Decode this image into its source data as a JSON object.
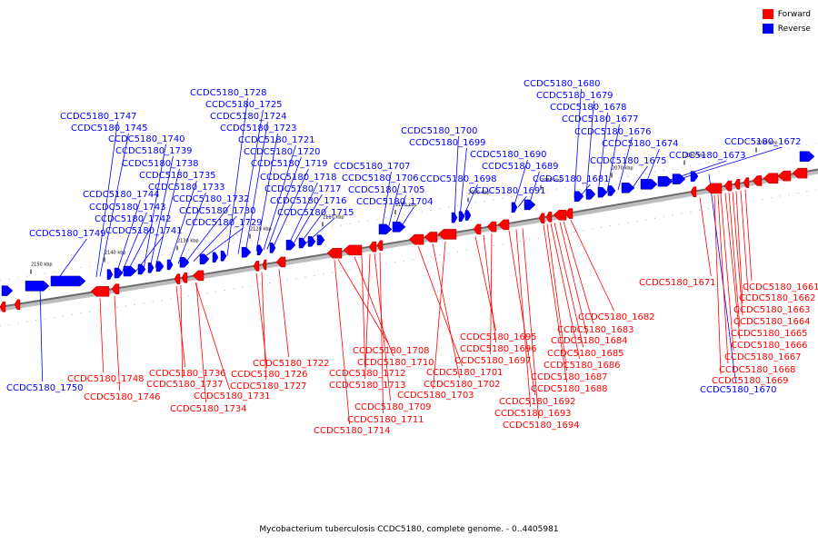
{
  "legend": {
    "forward_label": "Forward",
    "reverse_label": "Reverse",
    "forward_color": "#ff0000",
    "reverse_color": "#0000ff"
  },
  "caption": "Mycobacterium tuberculosis CCDC5180, complete genome. - 0..4405981",
  "scale": {
    "unit": "kbp",
    "ticks": [
      "2150 kbp",
      "2140 kbp",
      "2130 kbp",
      "2120 kbp",
      "2110 kbp",
      "2100 kbp",
      "2090 kbp",
      "2080 kbp",
      "2070 kbp",
      "2060 kbp",
      "2050 kbp"
    ]
  },
  "genes": {
    "reverse": [
      "CCDC5180_1750",
      "CCDC5180_1749",
      "CCDC5180_1747",
      "CCDC5180_1745",
      "CCDC5180_1744",
      "CCDC5180_1743",
      "CCDC5180_1742",
      "CCDC5180_1741",
      "CCDC5180_1740",
      "CCDC5180_1739",
      "CCDC5180_1738",
      "CCDC5180_1735",
      "CCDC5180_1733",
      "CCDC5180_1732",
      "CCDC5180_1730",
      "CCDC5180_1729",
      "CCDC5180_1728",
      "CCDC5180_1725",
      "CCDC5180_1724",
      "CCDC5180_1723",
      "CCDC5180_1721",
      "CCDC5180_1720",
      "CCDC5180_1719",
      "CCDC5180_1718",
      "CCDC5180_1717",
      "CCDC5180_1716",
      "CCDC5180_1715",
      "CCDC5180_1707",
      "CCDC5180_1706",
      "CCDC5180_1705",
      "CCDC5180_1704",
      "CCDC5180_1700",
      "CCDC5180_1699",
      "CCDC5180_1698",
      "CCDC5180_1691",
      "CCDC5180_1690",
      "CCDC5180_1689",
      "CCDC5180_1681",
      "CCDC5180_1680",
      "CCDC5180_1679",
      "CCDC5180_1678",
      "CCDC5180_1677",
      "CCDC5180_1676",
      "CCDC5180_1675",
      "CCDC5180_1674",
      "CCDC5180_1673",
      "CCDC5180_1672",
      "CCDC5180_1670"
    ],
    "forward": [
      "CCDC5180_1748",
      "CCDC5180_1746",
      "CCDC5180_1736",
      "CCDC5180_1737",
      "CCDC5180_1731",
      "CCDC5180_1734",
      "CCDC5180_1726",
      "CCDC5180_1727",
      "CCDC5180_1722",
      "CCDC5180_1708",
      "CCDC5180_1710",
      "CCDC5180_1712",
      "CCDC5180_1713",
      "CCDC5180_1709",
      "CCDC5180_1711",
      "CCDC5180_1714",
      "CCDC5180_1701",
      "CCDC5180_1702",
      "CCDC5180_1703",
      "CCDC5180_1695",
      "CCDC5180_1696",
      "CCDC5180_1697",
      "CCDC5180_1692",
      "CCDC5180_1693",
      "CCDC5180_1694",
      "CCDC5180_1682",
      "CCDC5180_1683",
      "CCDC5180_1684",
      "CCDC5180_1685",
      "CCDC5180_1686",
      "CCDC5180_1687",
      "CCDC5180_1688",
      "CCDC5180_1671",
      "CCDC5180_1661",
      "CCDC5180_1662",
      "CCDC5180_1663",
      "CCDC5180_1664",
      "CCDC5180_1665",
      "CCDC5180_1666",
      "CCDC5180_1667",
      "CCDC5180_1668",
      "CCDC5180_1669"
    ]
  }
}
